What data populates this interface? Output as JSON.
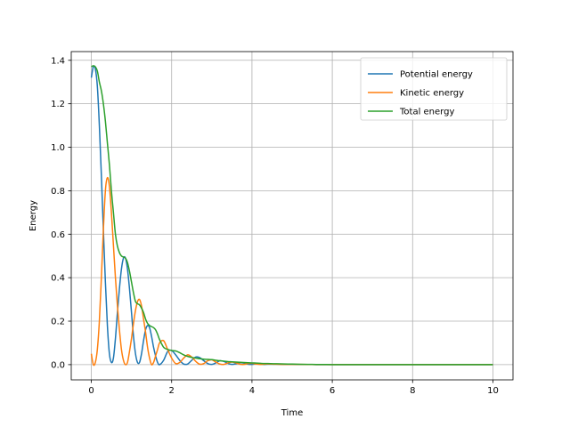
{
  "chart_data": {
    "type": "line",
    "title": "",
    "xlabel": "Time",
    "ylabel": "Energy",
    "xlim": [
      -0.5,
      10.5
    ],
    "ylim": [
      -0.07,
      1.44
    ],
    "xticks": [
      0,
      2,
      4,
      6,
      8,
      10
    ],
    "yticks": [
      0.0,
      0.2,
      0.4,
      0.6,
      0.8,
      1.0,
      1.2,
      1.4
    ],
    "xtick_labels": [
      "0",
      "2",
      "4",
      "6",
      "8",
      "10"
    ],
    "ytick_labels": [
      "0.0",
      "0.2",
      "0.4",
      "0.6",
      "0.8",
      "1.0",
      "1.2",
      "1.4"
    ],
    "grid": true,
    "legend_position": "top-right",
    "series": [
      {
        "name": "Potential energy",
        "color": "#1f77b4",
        "x": [
          0.0,
          0.05,
          0.1,
          0.15,
          0.2,
          0.25,
          0.3,
          0.35,
          0.4,
          0.45,
          0.5,
          0.55,
          0.6,
          0.65,
          0.7,
          0.75,
          0.8,
          0.85,
          0.9,
          0.95,
          1.0,
          1.05,
          1.1,
          1.15,
          1.2,
          1.25,
          1.3,
          1.35,
          1.4,
          1.45,
          1.5,
          1.55,
          1.6,
          1.65,
          1.7,
          1.8,
          1.9,
          2.0,
          2.1,
          2.2,
          2.3,
          2.4,
          2.5,
          2.6,
          2.7,
          2.8,
          2.9,
          3.0,
          3.1,
          3.2,
          3.3,
          3.4,
          3.5,
          3.6,
          3.7,
          3.8,
          3.9,
          4.0,
          4.1,
          4.2,
          4.3,
          4.4,
          4.6,
          4.8,
          5.0,
          5.2,
          5.4,
          5.6,
          5.8,
          6.0,
          6.5,
          7.0,
          8.0,
          9.0,
          10.0
        ],
        "values": [
          1.32,
          1.37,
          1.36,
          1.28,
          1.1,
          0.87,
          0.62,
          0.38,
          0.18,
          0.05,
          0.01,
          0.03,
          0.12,
          0.24,
          0.35,
          0.44,
          0.49,
          0.49,
          0.44,
          0.35,
          0.24,
          0.13,
          0.05,
          0.01,
          0.01,
          0.05,
          0.11,
          0.16,
          0.18,
          0.17,
          0.13,
          0.08,
          0.04,
          0.01,
          0.0,
          0.02,
          0.06,
          0.065,
          0.045,
          0.02,
          0.003,
          0.003,
          0.02,
          0.035,
          0.032,
          0.018,
          0.005,
          0.001,
          0.008,
          0.018,
          0.015,
          0.006,
          0.001,
          0.004,
          0.009,
          0.007,
          0.002,
          0.001,
          0.004,
          0.004,
          0.001,
          0.002,
          0.002,
          0.001,
          0.001,
          0.0005,
          0.0005,
          0.0003,
          0.0002,
          0.0001,
          0.0,
          0.0,
          0.0,
          0.0,
          0.0
        ]
      },
      {
        "name": "Kinetic energy",
        "color": "#ff7f0e",
        "x": [
          0.0,
          0.05,
          0.1,
          0.15,
          0.2,
          0.25,
          0.3,
          0.35,
          0.4,
          0.45,
          0.5,
          0.55,
          0.6,
          0.65,
          0.7,
          0.75,
          0.8,
          0.85,
          0.9,
          0.95,
          1.0,
          1.05,
          1.1,
          1.15,
          1.2,
          1.25,
          1.3,
          1.35,
          1.4,
          1.45,
          1.5,
          1.55,
          1.6,
          1.65,
          1.7,
          1.8,
          1.9,
          2.0,
          2.1,
          2.2,
          2.3,
          2.4,
          2.5,
          2.6,
          2.7,
          2.8,
          2.9,
          3.0,
          3.1,
          3.2,
          3.3,
          3.4,
          3.5,
          3.6,
          3.7,
          3.8,
          3.9,
          4.0,
          4.1,
          4.2,
          4.3,
          4.4,
          4.6,
          4.8,
          5.0,
          5.2,
          5.4,
          5.6,
          5.8,
          6.0,
          6.5,
          7.0,
          8.0,
          9.0,
          10.0
        ],
        "values": [
          0.05,
          0.0,
          0.01,
          0.07,
          0.2,
          0.4,
          0.62,
          0.8,
          0.86,
          0.82,
          0.7,
          0.55,
          0.4,
          0.27,
          0.16,
          0.07,
          0.02,
          0.0,
          0.01,
          0.06,
          0.12,
          0.19,
          0.25,
          0.29,
          0.3,
          0.27,
          0.21,
          0.15,
          0.08,
          0.03,
          0.0,
          0.01,
          0.04,
          0.07,
          0.1,
          0.11,
          0.07,
          0.03,
          0.005,
          0.01,
          0.03,
          0.045,
          0.035,
          0.015,
          0.002,
          0.005,
          0.018,
          0.022,
          0.012,
          0.003,
          0.001,
          0.008,
          0.012,
          0.008,
          0.002,
          0.001,
          0.005,
          0.006,
          0.003,
          0.001,
          0.002,
          0.003,
          0.002,
          0.001,
          0.001,
          0.001,
          0.0005,
          0.0003,
          0.0002,
          0.0001,
          0.0,
          0.0,
          0.0,
          0.0,
          0.0
        ]
      },
      {
        "name": "Total energy",
        "color": "#2ca02c",
        "x": [
          0.0,
          0.05,
          0.1,
          0.15,
          0.2,
          0.25,
          0.3,
          0.35,
          0.4,
          0.45,
          0.5,
          0.55,
          0.6,
          0.65,
          0.7,
          0.75,
          0.8,
          0.85,
          0.9,
          0.95,
          1.0,
          1.05,
          1.1,
          1.15,
          1.2,
          1.25,
          1.3,
          1.35,
          1.4,
          1.45,
          1.5,
          1.55,
          1.6,
          1.65,
          1.7,
          1.8,
          1.9,
          2.0,
          2.1,
          2.2,
          2.3,
          2.4,
          2.5,
          2.6,
          2.7,
          2.8,
          2.9,
          3.0,
          3.1,
          3.2,
          3.3,
          3.4,
          3.5,
          3.6,
          3.7,
          3.8,
          3.9,
          4.0,
          4.1,
          4.2,
          4.3,
          4.4,
          4.6,
          4.8,
          5.0,
          5.2,
          5.4,
          5.6,
          5.8,
          6.0,
          6.5,
          7.0,
          8.0,
          9.0,
          10.0
        ],
        "values": [
          1.37,
          1.375,
          1.37,
          1.35,
          1.3,
          1.26,
          1.2,
          1.12,
          1.02,
          0.92,
          0.8,
          0.7,
          0.6,
          0.545,
          0.515,
          0.5,
          0.495,
          0.49,
          0.47,
          0.43,
          0.38,
          0.33,
          0.29,
          0.28,
          0.275,
          0.26,
          0.24,
          0.21,
          0.19,
          0.18,
          0.175,
          0.17,
          0.16,
          0.14,
          0.115,
          0.08,
          0.07,
          0.065,
          0.063,
          0.055,
          0.045,
          0.038,
          0.033,
          0.03,
          0.027,
          0.025,
          0.024,
          0.023,
          0.02,
          0.018,
          0.016,
          0.014,
          0.013,
          0.012,
          0.011,
          0.01,
          0.009,
          0.008,
          0.007,
          0.006,
          0.005,
          0.005,
          0.004,
          0.003,
          0.0025,
          0.0018,
          0.0012,
          0.0008,
          0.0005,
          0.0003,
          0.0001,
          0.0,
          0.0,
          0.0,
          0.0
        ]
      }
    ]
  }
}
